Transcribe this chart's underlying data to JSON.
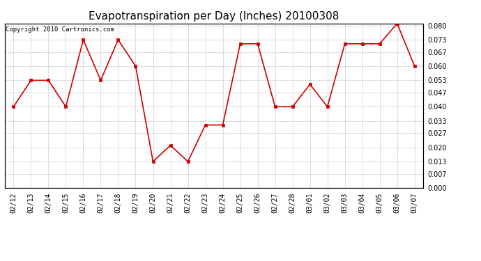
{
  "title": "Evapotranspiration per Day (Inches) 20100308",
  "copyright_text": "Copyright 2010 Cartronics.com",
  "dates": [
    "02/12",
    "02/13",
    "02/14",
    "02/15",
    "02/16",
    "02/17",
    "02/18",
    "02/19",
    "02/20",
    "02/21",
    "02/22",
    "02/23",
    "02/24",
    "02/25",
    "02/26",
    "02/27",
    "02/28",
    "03/01",
    "03/02",
    "03/03",
    "03/04",
    "03/05",
    "03/06",
    "03/07"
  ],
  "values": [
    0.04,
    0.053,
    0.053,
    0.04,
    0.073,
    0.053,
    0.073,
    0.06,
    0.013,
    0.021,
    0.013,
    0.031,
    0.031,
    0.071,
    0.071,
    0.04,
    0.04,
    0.051,
    0.04,
    0.071,
    0.071,
    0.071,
    0.081,
    0.06
  ],
  "line_color": "#cc0000",
  "marker_color": "#cc0000",
  "bg_color": "#ffffff",
  "grid_color": "#bbbbbb",
  "ylim_min": 0.0,
  "ylim_max": 0.08,
  "yticks": [
    0.0,
    0.007,
    0.013,
    0.02,
    0.027,
    0.033,
    0.04,
    0.047,
    0.053,
    0.06,
    0.067,
    0.073,
    0.08
  ],
  "title_fontsize": 11,
  "copyright_fontsize": 6.5,
  "tick_fontsize": 7
}
